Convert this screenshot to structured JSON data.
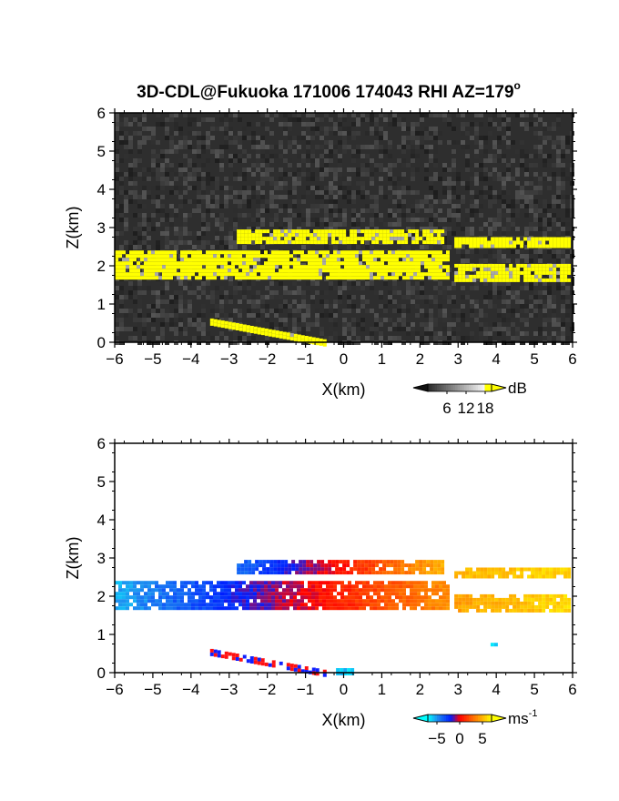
{
  "chart_data": [
    {
      "type": "heatmap",
      "title": "3D-CDL@Fukuoka 171006 174043 RHI AZ=179",
      "title_superscript": "o",
      "xlabel": "X(km)",
      "ylabel": "Z(km)",
      "xlim": [
        -6,
        6
      ],
      "ylim": [
        0,
        6
      ],
      "x_ticks": [
        "-6",
        "-5",
        "-4",
        "-3",
        "-2",
        "-1",
        "0",
        "1",
        "2",
        "3",
        "4",
        "5",
        "6"
      ],
      "y_ticks": [
        "0",
        "1",
        "2",
        "3",
        "4",
        "5",
        "6"
      ],
      "colorbar": {
        "unit": "dB",
        "ticks": [
          "6",
          "12",
          "18"
        ],
        "range": [
          0,
          20
        ]
      },
      "background": "#2e2e2e",
      "layers": [
        {
          "x": [
            -2.8,
            2.6
          ],
          "z": [
            2.65,
            2.95
          ],
          "value": 19
        },
        {
          "x": [
            2.9,
            5.9
          ],
          "z": [
            2.5,
            2.75
          ],
          "value": 19
        },
        {
          "x": [
            -6.0,
            2.7
          ],
          "z": [
            1.65,
            2.4
          ],
          "value": 19
        },
        {
          "x": [
            2.9,
            5.9
          ],
          "z": [
            1.6,
            2.05
          ],
          "value": 19
        },
        {
          "x": [
            -3.5,
            -0.5
          ],
          "z": [
            0.0,
            0.55
          ],
          "value": 19
        }
      ]
    },
    {
      "type": "heatmap",
      "xlabel": "X(km)",
      "ylabel": "Z(km)",
      "xlim": [
        -6,
        6
      ],
      "ylim": [
        0,
        6
      ],
      "x_ticks": [
        "-6",
        "-5",
        "-4",
        "-3",
        "-2",
        "-1",
        "0",
        "1",
        "2",
        "3",
        "4",
        "5",
        "6"
      ],
      "y_ticks": [
        "0",
        "1",
        "2",
        "3",
        "4",
        "5",
        "6"
      ],
      "colorbar": {
        "unit": "ms",
        "unit_superscript": "-1",
        "ticks": [
          "−5",
          "0",
          "5"
        ],
        "range": [
          -7,
          7
        ]
      },
      "background": "#ffffff",
      "layers": [
        {
          "x": [
            -2.8,
            2.6
          ],
          "z": [
            2.65,
            2.95
          ],
          "v_start": -4,
          "v_end": 5
        },
        {
          "x": [
            2.9,
            5.9
          ],
          "z": [
            2.5,
            2.75
          ],
          "v_start": 5,
          "v_end": 6
        },
        {
          "x": [
            -6.0,
            2.7
          ],
          "z": [
            1.65,
            2.4
          ],
          "v_start": -5.5,
          "v_end": 4
        },
        {
          "x": [
            2.9,
            5.9
          ],
          "z": [
            1.6,
            2.05
          ],
          "v_start": 4.5,
          "v_end": 6
        },
        {
          "x": [
            -3.5,
            -0.5
          ],
          "z": [
            0.0,
            0.55
          ],
          "v_start": 0,
          "v_end": 0,
          "mixed": true
        },
        {
          "x": [
            -0.2,
            0.2
          ],
          "z": [
            0.0,
            0.12
          ],
          "v_start": -6,
          "v_end": -6
        },
        {
          "x": [
            3.85,
            3.95
          ],
          "z": [
            0.7,
            0.78
          ],
          "v_start": -6,
          "v_end": -6
        }
      ]
    }
  ]
}
